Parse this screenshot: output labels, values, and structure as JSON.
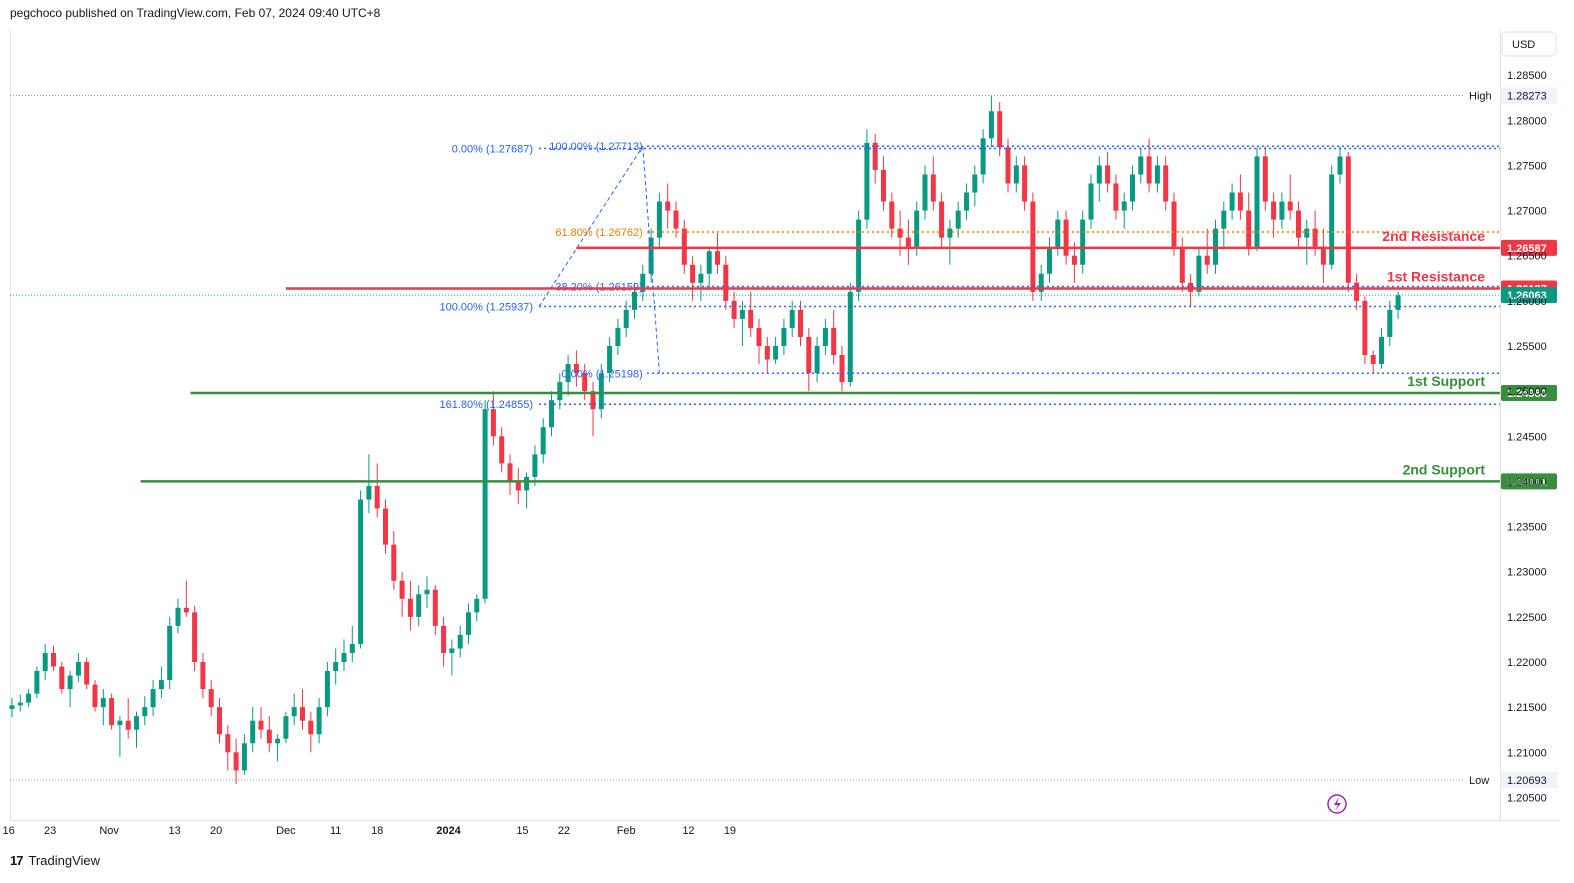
{
  "header": {
    "published": "pegchoco published on TradingView.com, Feb 07, 2024 09:40 UTC+8"
  },
  "footer": {
    "brand": "TradingView",
    "logo_mark": "17"
  },
  "currency_button": "USD",
  "chart_data": {
    "type": "candlestick",
    "instrument_currency": "USD",
    "y_ticks": [
      1.285,
      1.28,
      1.275,
      1.27,
      1.265,
      1.26,
      1.255,
      1.25,
      1.245,
      1.24,
      1.235,
      1.23,
      1.225,
      1.22,
      1.215,
      1.21,
      1.205
    ],
    "ylim": [
      1.2025,
      1.29
    ],
    "x_ticks": [
      {
        "label": "16",
        "bold": false,
        "index": -0.4
      },
      {
        "label": "23",
        "bold": false,
        "index": 4.6
      },
      {
        "label": "Nov",
        "bold": false,
        "index": 11.7
      },
      {
        "label": "13",
        "bold": false,
        "index": 19.6
      },
      {
        "label": "20",
        "bold": false,
        "index": 24.6
      },
      {
        "label": "Dec",
        "bold": false,
        "index": 33.0
      },
      {
        "label": "11",
        "bold": false,
        "index": 39.0
      },
      {
        "label": "18",
        "bold": false,
        "index": 44.0
      },
      {
        "label": "2024",
        "bold": true,
        "index": 52.6
      },
      {
        "label": "15",
        "bold": false,
        "index": 61.5
      },
      {
        "label": "22",
        "bold": false,
        "index": 66.5
      },
      {
        "label": "Feb",
        "bold": false,
        "index": 74.0
      },
      {
        "label": "12",
        "bold": false,
        "index": 81.5
      },
      {
        "label": "19",
        "bold": false,
        "index": 86.5
      }
    ],
    "high": {
      "label": "High",
      "value": 1.28273
    },
    "low": {
      "label": "Low",
      "value": 1.20693
    },
    "last_price": 1.26063,
    "levels": [
      {
        "label": "2nd Resistance",
        "value": 1.26587,
        "color": "#f23645",
        "x_start": 68.0
      },
      {
        "label": "1st Resistance",
        "value": 1.26137,
        "color": "#f23645",
        "x_start": 33.0
      },
      {
        "label": "1st Support",
        "value": 1.2498,
        "color": "#388e3c",
        "x_start": 21.5
      },
      {
        "label": "2nd Support",
        "value": 1.24001,
        "color": "#388e3c",
        "x_start": 15.5
      }
    ],
    "fib_left": [
      {
        "label": "0.00% (1.27687)",
        "value": 1.27687,
        "x_from": 63.5
      },
      {
        "label": "100.00% (1.25937)",
        "value": 1.25937,
        "x_from": 63.5
      },
      {
        "label": "161.80% (1.24855)",
        "value": 1.24855,
        "x_from": 63.5
      }
    ],
    "fib_right": [
      {
        "label": "100.00% (1.27713)",
        "value": 1.27713,
        "color": "#2962ff"
      },
      {
        "label": "61.80% (1.26762)",
        "value": 1.26762,
        "color": "#f57c00"
      },
      {
        "label": "38.20% (1.26159)",
        "value": 1.26159,
        "color": "#2962ff"
      },
      {
        "label": "0.00% (1.25198)",
        "value": 1.25198,
        "color": "#2962ff"
      }
    ],
    "colors": {
      "up": "#089981",
      "down": "#f23645"
    },
    "candles": [
      [
        1.2148,
        1.216,
        1.2139,
        1.2152
      ],
      [
        1.2152,
        1.2164,
        1.2145,
        1.2155
      ],
      [
        1.2155,
        1.217,
        1.215,
        1.2165
      ],
      [
        1.2165,
        1.2195,
        1.216,
        1.219
      ],
      [
        1.219,
        1.222,
        1.218,
        1.221
      ],
      [
        1.221,
        1.2218,
        1.219,
        1.2195
      ],
      [
        1.2195,
        1.22,
        1.2165,
        1.217
      ],
      [
        1.217,
        1.219,
        1.215,
        1.2185
      ],
      [
        1.2185,
        1.221,
        1.2178,
        1.22
      ],
      [
        1.22,
        1.2205,
        1.217,
        1.2175
      ],
      [
        1.2175,
        1.218,
        1.2145,
        1.215
      ],
      [
        1.215,
        1.217,
        1.213,
        1.216
      ],
      [
        1.216,
        1.2165,
        1.2125,
        1.213
      ],
      [
        1.213,
        1.214,
        1.2095,
        1.2135
      ],
      [
        1.2135,
        1.216,
        1.2115,
        1.2125
      ],
      [
        1.2125,
        1.2145,
        1.2105,
        1.214
      ],
      [
        1.214,
        1.2162,
        1.213,
        1.215
      ],
      [
        1.215,
        1.218,
        1.214,
        1.217
      ],
      [
        1.217,
        1.2195,
        1.216,
        1.218
      ],
      [
        1.218,
        1.225,
        1.217,
        1.224
      ],
      [
        1.224,
        1.227,
        1.2232,
        1.226
      ],
      [
        1.226,
        1.229,
        1.225,
        1.2255
      ],
      [
        1.2255,
        1.2262,
        1.219,
        1.22
      ],
      [
        1.22,
        1.221,
        1.216,
        1.217
      ],
      [
        1.217,
        1.218,
        1.214,
        1.215
      ],
      [
        1.215,
        1.216,
        1.211,
        1.212
      ],
      [
        1.212,
        1.213,
        1.208,
        1.21
      ],
      [
        1.21,
        1.2115,
        1.2065,
        1.208
      ],
      [
        1.208,
        1.212,
        1.2075,
        1.211
      ],
      [
        1.211,
        1.215,
        1.21,
        1.2135
      ],
      [
        1.2135,
        1.215,
        1.2115,
        1.2125
      ],
      [
        1.2125,
        1.214,
        1.21,
        1.211
      ],
      [
        1.211,
        1.212,
        1.209,
        1.2115
      ],
      [
        1.2115,
        1.2145,
        1.211,
        1.214
      ],
      [
        1.214,
        1.2165,
        1.213,
        1.215
      ],
      [
        1.215,
        1.217,
        1.2125,
        1.2135
      ],
      [
        1.2135,
        1.2145,
        1.21,
        1.212
      ],
      [
        1.212,
        1.216,
        1.211,
        1.215
      ],
      [
        1.215,
        1.22,
        1.214,
        1.219
      ],
      [
        1.219,
        1.2215,
        1.2175,
        1.22
      ],
      [
        1.22,
        1.2225,
        1.219,
        1.221
      ],
      [
        1.221,
        1.224,
        1.22,
        1.222
      ],
      [
        1.222,
        1.239,
        1.2215,
        1.238
      ],
      [
        1.238,
        1.243,
        1.2365,
        1.2395
      ],
      [
        1.2395,
        1.242,
        1.236,
        1.237
      ],
      [
        1.237,
        1.238,
        1.232,
        1.233
      ],
      [
        1.233,
        1.2345,
        1.228,
        1.229
      ],
      [
        1.229,
        1.23,
        1.225,
        1.227
      ],
      [
        1.227,
        1.229,
        1.2235,
        1.225
      ],
      [
        1.225,
        1.2285,
        1.224,
        1.2275
      ],
      [
        1.2275,
        1.2295,
        1.226,
        1.228
      ],
      [
        1.228,
        1.2285,
        1.223,
        1.224
      ],
      [
        1.224,
        1.225,
        1.2195,
        1.221
      ],
      [
        1.221,
        1.2225,
        1.2185,
        1.2215
      ],
      [
        1.2215,
        1.224,
        1.2205,
        1.223
      ],
      [
        1.223,
        1.2265,
        1.222,
        1.2255
      ],
      [
        1.2255,
        1.2275,
        1.2245,
        1.227
      ],
      [
        1.227,
        1.249,
        1.2265,
        1.248
      ],
      [
        1.248,
        1.25,
        1.244,
        1.245
      ],
      [
        1.245,
        1.246,
        1.241,
        1.242
      ],
      [
        1.242,
        1.243,
        1.2385,
        1.24
      ],
      [
        1.24,
        1.2415,
        1.2375,
        1.239
      ],
      [
        1.239,
        1.241,
        1.237,
        1.2405
      ],
      [
        1.2405,
        1.244,
        1.2395,
        1.243
      ],
      [
        1.243,
        1.247,
        1.242,
        1.246
      ],
      [
        1.246,
        1.25,
        1.245,
        1.249
      ],
      [
        1.249,
        1.252,
        1.248,
        1.251
      ],
      [
        1.251,
        1.254,
        1.2495,
        1.253
      ],
      [
        1.253,
        1.2545,
        1.2505,
        1.252
      ],
      [
        1.252,
        1.253,
        1.249,
        1.25
      ],
      [
        1.25,
        1.251,
        1.245,
        1.248
      ],
      [
        1.248,
        1.253,
        1.247,
        1.252
      ],
      [
        1.252,
        1.256,
        1.251,
        1.255
      ],
      [
        1.255,
        1.258,
        1.254,
        1.257
      ],
      [
        1.257,
        1.26,
        1.256,
        1.259
      ],
      [
        1.259,
        1.262,
        1.258,
        1.261
      ],
      [
        1.261,
        1.264,
        1.26,
        1.263
      ],
      [
        1.263,
        1.268,
        1.262,
        1.267
      ],
      [
        1.267,
        1.272,
        1.266,
        1.271
      ],
      [
        1.271,
        1.273,
        1.268,
        1.27
      ],
      [
        1.27,
        1.271,
        1.267,
        1.268
      ],
      [
        1.268,
        1.269,
        1.263,
        1.264
      ],
      [
        1.264,
        1.265,
        1.26,
        1.262
      ],
      [
        1.262,
        1.264,
        1.26,
        1.263
      ],
      [
        1.263,
        1.266,
        1.2615,
        1.2655
      ],
      [
        1.2655,
        1.2675,
        1.263,
        1.264
      ],
      [
        1.264,
        1.265,
        1.259,
        1.26
      ],
      [
        1.26,
        1.261,
        1.257,
        1.258
      ],
      [
        1.258,
        1.26,
        1.255,
        1.259
      ],
      [
        1.259,
        1.261,
        1.256,
        1.257
      ],
      [
        1.257,
        1.258,
        1.253,
        1.255
      ],
      [
        1.255,
        1.256,
        1.252,
        1.2535
      ],
      [
        1.2535,
        1.256,
        1.253,
        1.255
      ],
      [
        1.255,
        1.258,
        1.254,
        1.257
      ],
      [
        1.257,
        1.26,
        1.256,
        1.259
      ],
      [
        1.259,
        1.26,
        1.255,
        1.256
      ],
      [
        1.256,
        1.257,
        1.25,
        1.252
      ],
      [
        1.252,
        1.256,
        1.251,
        1.255
      ],
      [
        1.255,
        1.258,
        1.254,
        1.257
      ],
      [
        1.257,
        1.259,
        1.253,
        1.254
      ],
      [
        1.254,
        1.255,
        1.25,
        1.251
      ],
      [
        1.251,
        1.262,
        1.2505,
        1.261
      ],
      [
        1.261,
        1.27,
        1.26,
        1.269
      ],
      [
        1.269,
        1.279,
        1.268,
        1.2775
      ],
      [
        1.2775,
        1.2785,
        1.273,
        1.2745
      ],
      [
        1.2745,
        1.276,
        1.27,
        1.271
      ],
      [
        1.271,
        1.272,
        1.267,
        1.268
      ],
      [
        1.268,
        1.27,
        1.265,
        1.267
      ],
      [
        1.267,
        1.269,
        1.264,
        1.266
      ],
      [
        1.266,
        1.271,
        1.265,
        1.27
      ],
      [
        1.27,
        1.275,
        1.269,
        1.274
      ],
      [
        1.274,
        1.276,
        1.27,
        1.271
      ],
      [
        1.271,
        1.272,
        1.266,
        1.267
      ],
      [
        1.267,
        1.269,
        1.264,
        1.268
      ],
      [
        1.268,
        1.271,
        1.267,
        1.27
      ],
      [
        1.27,
        1.273,
        1.269,
        1.272
      ],
      [
        1.272,
        1.275,
        1.2705,
        1.274
      ],
      [
        1.274,
        1.279,
        1.273,
        1.278
      ],
      [
        1.278,
        1.2827,
        1.277,
        1.281
      ],
      [
        1.281,
        1.282,
        1.276,
        1.277
      ],
      [
        1.277,
        1.278,
        1.272,
        1.273
      ],
      [
        1.273,
        1.276,
        1.272,
        1.275
      ],
      [
        1.275,
        1.276,
        1.27,
        1.271
      ],
      [
        1.271,
        1.272,
        1.26,
        1.261
      ],
      [
        1.261,
        1.264,
        1.26,
        1.263
      ],
      [
        1.263,
        1.267,
        1.262,
        1.266
      ],
      [
        1.266,
        1.27,
        1.265,
        1.269
      ],
      [
        1.269,
        1.27,
        1.264,
        1.265
      ],
      [
        1.265,
        1.2665,
        1.262,
        1.264
      ],
      [
        1.264,
        1.27,
        1.263,
        1.269
      ],
      [
        1.269,
        1.274,
        1.268,
        1.273
      ],
      [
        1.273,
        1.276,
        1.271,
        1.275
      ],
      [
        1.275,
        1.2765,
        1.272,
        1.273
      ],
      [
        1.273,
        1.274,
        1.269,
        1.27
      ],
      [
        1.27,
        1.272,
        1.268,
        1.271
      ],
      [
        1.271,
        1.275,
        1.27,
        1.274
      ],
      [
        1.274,
        1.277,
        1.273,
        1.276
      ],
      [
        1.276,
        1.278,
        1.272,
        1.273
      ],
      [
        1.273,
        1.276,
        1.272,
        1.275
      ],
      [
        1.275,
        1.276,
        1.27,
        1.271
      ],
      [
        1.271,
        1.272,
        1.265,
        1.266
      ],
      [
        1.266,
        1.267,
        1.261,
        1.262
      ],
      [
        1.262,
        1.263,
        1.2593,
        1.261
      ],
      [
        1.261,
        1.266,
        1.2605,
        1.265
      ],
      [
        1.265,
        1.268,
        1.263,
        1.264
      ],
      [
        1.264,
        1.269,
        1.263,
        1.268
      ],
      [
        1.268,
        1.271,
        1.266,
        1.27
      ],
      [
        1.27,
        1.273,
        1.269,
        1.272
      ],
      [
        1.272,
        1.274,
        1.269,
        1.27
      ],
      [
        1.27,
        1.272,
        1.265,
        1.266
      ],
      [
        1.266,
        1.277,
        1.2655,
        1.276
      ],
      [
        1.276,
        1.2771,
        1.27,
        1.271
      ],
      [
        1.271,
        1.272,
        1.267,
        1.269
      ],
      [
        1.269,
        1.272,
        1.268,
        1.271
      ],
      [
        1.271,
        1.274,
        1.269,
        1.27
      ],
      [
        1.27,
        1.271,
        1.266,
        1.267
      ],
      [
        1.267,
        1.269,
        1.264,
        1.268
      ],
      [
        1.268,
        1.27,
        1.265,
        1.266
      ],
      [
        1.266,
        1.268,
        1.262,
        1.264
      ],
      [
        1.264,
        1.275,
        1.2635,
        1.274
      ],
      [
        1.274,
        1.2771,
        1.273,
        1.276
      ],
      [
        1.276,
        1.2765,
        1.261,
        1.262
      ],
      [
        1.262,
        1.263,
        1.259,
        1.26
      ],
      [
        1.26,
        1.2605,
        1.253,
        1.254
      ],
      [
        1.254,
        1.2545,
        1.252,
        1.253
      ],
      [
        1.253,
        1.257,
        1.2525,
        1.256
      ],
      [
        1.256,
        1.26,
        1.255,
        1.259
      ],
      [
        1.259,
        1.261,
        1.258,
        1.2606
      ]
    ]
  }
}
